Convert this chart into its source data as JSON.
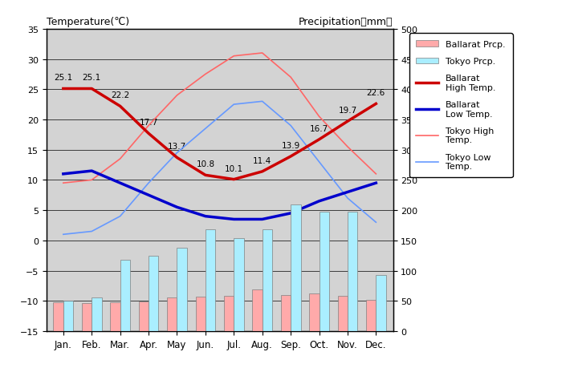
{
  "months": [
    "Jan.",
    "Feb.",
    "Mar.",
    "Apr.",
    "May",
    "Jun.",
    "Jul.",
    "Aug.",
    "Sep.",
    "Oct.",
    "Nov.",
    "Dec."
  ],
  "ballarat_high": [
    25.1,
    25.1,
    22.2,
    17.7,
    13.7,
    10.8,
    10.1,
    11.4,
    13.9,
    16.7,
    19.7,
    22.6
  ],
  "ballarat_low": [
    11.0,
    11.5,
    9.5,
    7.5,
    5.5,
    4.0,
    3.5,
    3.5,
    4.5,
    6.5,
    8.0,
    9.5
  ],
  "tokyo_high": [
    9.5,
    10.0,
    13.5,
    19.0,
    24.0,
    27.5,
    30.5,
    31.0,
    27.0,
    20.5,
    15.5,
    11.0
  ],
  "tokyo_low": [
    1.0,
    1.5,
    4.0,
    9.5,
    14.5,
    18.5,
    22.5,
    23.0,
    19.0,
    13.0,
    7.0,
    3.0
  ],
  "ballarat_prcp": [
    48,
    47,
    48,
    49,
    56,
    57,
    58,
    69,
    59,
    62,
    58,
    52
  ],
  "tokyo_prcp": [
    50,
    56,
    118,
    125,
    138,
    168,
    154,
    168,
    210,
    197,
    197,
    93
  ],
  "temp_ylim": [
    -15,
    35
  ],
  "prcp_ylim": [
    0,
    500
  ],
  "bg_color": "#d3d3d3",
  "ballarat_high_color": "#cc0000",
  "ballarat_low_color": "#0000cc",
  "tokyo_high_color": "#ff6666",
  "tokyo_low_color": "#6699ff",
  "ballarat_prcp_color": "#ffaaaa",
  "tokyo_prcp_color": "#aaeeff",
  "title_left": "Temperature(℃)",
  "title_right": "Precipitation（mm）"
}
